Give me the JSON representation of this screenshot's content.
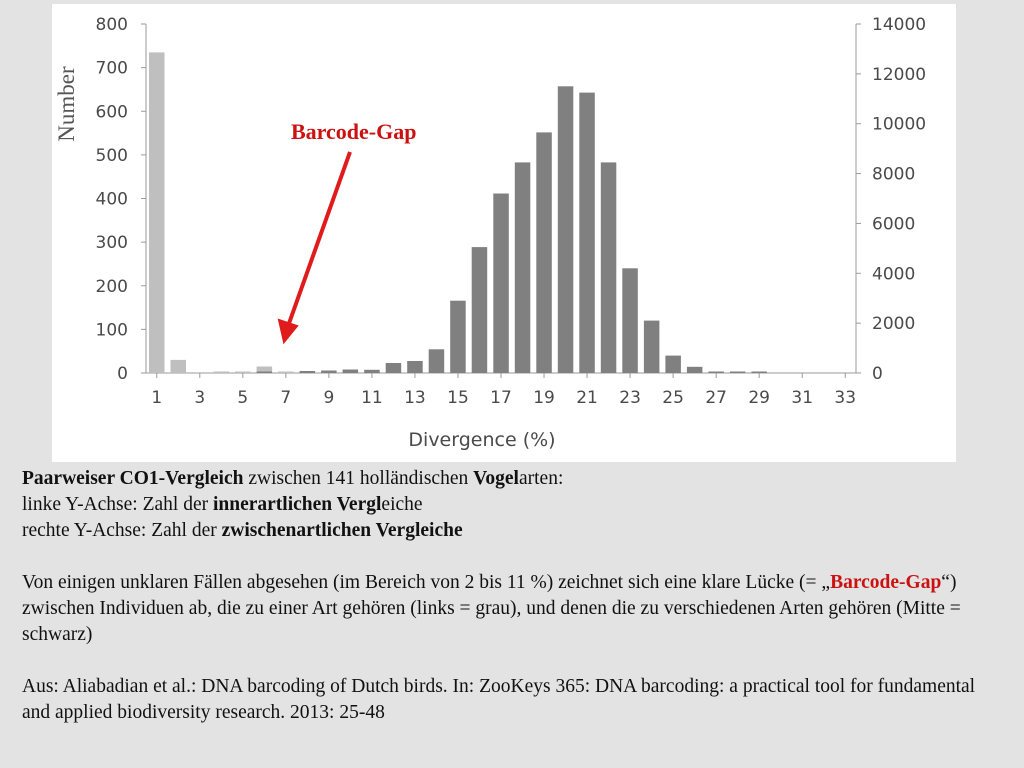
{
  "chart_data": {
    "type": "bar",
    "title": "",
    "xlabel": "Divergence (%)",
    "ylabel_left": "Number",
    "ylabel_right": "",
    "x_tick_labels": [
      "1",
      "3",
      "5",
      "7",
      "9",
      "11",
      "13",
      "15",
      "17",
      "19",
      "21",
      "23",
      "25",
      "27",
      "29",
      "31",
      "33"
    ],
    "ylim_left": [
      0,
      800
    ],
    "y_ticks_left": [
      "0",
      "100",
      "200",
      "300",
      "400",
      "500",
      "600",
      "700",
      "800"
    ],
    "ylim_right": [
      0,
      14000
    ],
    "y_ticks_right": [
      "0",
      "2000",
      "4000",
      "6000",
      "8000",
      "10000",
      "12000",
      "14000"
    ],
    "grid": false,
    "series": [
      {
        "axis": "left",
        "color": "#bfbfbf",
        "x": [
          1,
          2,
          3,
          4,
          5,
          6,
          7,
          8,
          9,
          10,
          11
        ],
        "values": [
          735,
          30,
          0,
          2,
          2,
          15,
          2,
          2,
          2,
          2,
          2
        ]
      },
      {
        "axis": "right",
        "color": "#808080",
        "x": [
          3,
          4,
          5,
          6,
          7,
          8,
          9,
          10,
          11,
          12,
          13,
          14,
          15,
          16,
          17,
          18,
          19,
          20,
          21,
          22,
          23,
          24,
          25,
          26,
          27,
          28,
          29,
          30
        ],
        "values": [
          0,
          0,
          0,
          50,
          0,
          80,
          100,
          140,
          130,
          400,
          480,
          950,
          2900,
          5050,
          7200,
          8450,
          9650,
          11500,
          11250,
          8450,
          4200,
          2100,
          700,
          250,
          50,
          30,
          10,
          0
        ]
      }
    ],
    "annotations": [
      {
        "text": "Barcode-Gap",
        "color": "#cc1111",
        "points_to_x": 7
      }
    ]
  },
  "caption": {
    "l1_b1": "Paarweiser CO1-Vergleich",
    "l1_t1": " zwischen  141 holländischen ",
    "l1_b2": "Vogel",
    "l1_t2": "arten:",
    "l2_t1": "linke Y-Achse: Zahl der ",
    "l2_b1": "innerartlichen Vergl",
    "l2_t2": "eiche",
    "l3_t1": "rechte Y-Achse: Zahl der ",
    "l3_b1": "zwischenartlichen Vergleiche",
    "p2_t1": "Von einigen unklaren Fällen abgesehen (im Bereich von 2 bis 11 %) zeichnet sich eine klare Lücke (= „",
    "p2_red": "Barcode-Gap",
    "p2_t2": "“) zwischen Individuen ab, die zu einer Art gehören (links = grau), und denen die zu verschiedenen Arten gehören (Mitte = schwarz)",
    "p3": "Aus: Aliabadian et al.: DNA barcoding of Dutch birds. In: ZooKeys 365: DNA barcoding: a practical tool for fundamental and applied biodiversity research. 2013: 25-48"
  }
}
